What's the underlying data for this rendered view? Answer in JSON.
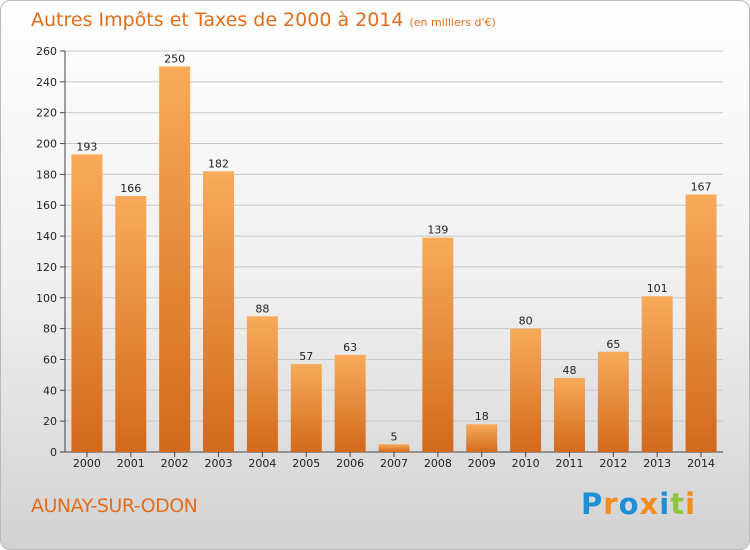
{
  "header": {
    "title": "Autres Impôts et Taxes de 2000 à 2014",
    "subtitle": "(en milliers d'€)"
  },
  "footer": {
    "place": "AUNAY-SUR-ODON",
    "logo_text": "Proxiti",
    "logo_colors": [
      "#1e8fd6",
      "#f28c1a",
      "#1e8fd6",
      "#f28c1a",
      "#1e8fd6",
      "#8cc63f",
      "#f28c1a"
    ]
  },
  "colors": {
    "bar_light": "#f7a754",
    "bar_dark": "#d2691d",
    "accent": "#e26d1b"
  },
  "chart_data": {
    "type": "bar",
    "title": "Autres Impôts et Taxes de 2000 à 2014",
    "subtitle": "(en milliers d'€)",
    "xlabel": "",
    "ylabel": "",
    "categories": [
      "2000",
      "2001",
      "2002",
      "2003",
      "2004",
      "2005",
      "2006",
      "2007",
      "2008",
      "2009",
      "2010",
      "2011",
      "2012",
      "2013",
      "2014"
    ],
    "values": [
      193,
      166,
      250,
      182,
      88,
      57,
      63,
      5,
      139,
      18,
      80,
      48,
      65,
      101,
      167
    ],
    "ylim": [
      0,
      260
    ],
    "yticks": [
      0,
      20,
      40,
      60,
      80,
      100,
      120,
      140,
      160,
      180,
      200,
      220,
      240,
      260
    ],
    "grid": true,
    "data_labels": true
  }
}
